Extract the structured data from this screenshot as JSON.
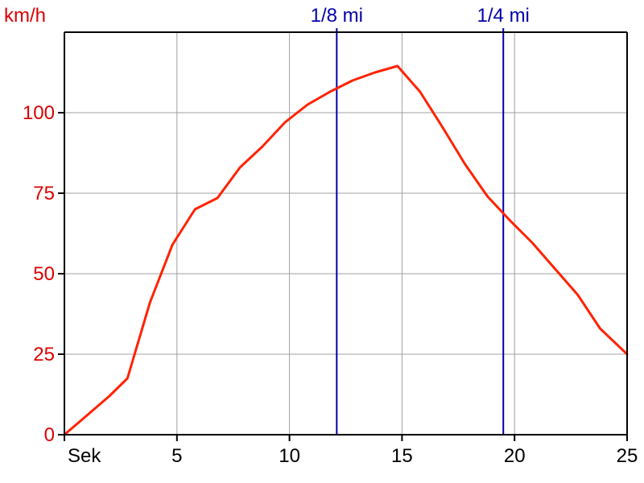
{
  "chart_data": {
    "type": "line",
    "ylabel": "km/h",
    "xlabel": "Sek",
    "xlim": [
      0,
      25
    ],
    "ylim": [
      0,
      125
    ],
    "x_ticks": [
      {
        "value": 0,
        "label": "Sek"
      },
      {
        "value": 5,
        "label": "5"
      },
      {
        "value": 10,
        "label": "10"
      },
      {
        "value": 15,
        "label": "15"
      },
      {
        "value": 20,
        "label": "20"
      },
      {
        "value": 25,
        "label": "25"
      }
    ],
    "y_ticks": [
      {
        "value": 0,
        "label": "0"
      },
      {
        "value": 25,
        "label": "25"
      },
      {
        "value": 50,
        "label": "50"
      },
      {
        "value": 75,
        "label": "75"
      },
      {
        "value": 100,
        "label": "100"
      }
    ],
    "grid": true,
    "series": [
      {
        "color": "#ff2200",
        "points": [
          [
            0,
            0
          ],
          [
            1,
            6
          ],
          [
            2,
            12
          ],
          [
            2.8,
            17.5
          ],
          [
            3.8,
            41
          ],
          [
            4.8,
            59
          ],
          [
            5.8,
            70
          ],
          [
            6.8,
            73.5
          ],
          [
            7.8,
            83
          ],
          [
            8.8,
            89.5
          ],
          [
            9.8,
            97
          ],
          [
            10.8,
            102.5
          ],
          [
            11.8,
            106.5
          ],
          [
            12.8,
            110
          ],
          [
            13.8,
            112.5
          ],
          [
            14.8,
            114.5
          ],
          [
            15.8,
            106.5
          ],
          [
            16.8,
            95.5
          ],
          [
            17.8,
            84
          ],
          [
            18.8,
            74
          ],
          [
            19.8,
            66.5
          ],
          [
            20.8,
            59.5
          ],
          [
            21.8,
            51.5
          ],
          [
            22.8,
            43.5
          ],
          [
            23.8,
            33
          ],
          [
            25,
            25
          ]
        ]
      }
    ],
    "markers": [
      {
        "x": 12.1,
        "label": "1/8 mi",
        "color": "#0000aa"
      },
      {
        "x": 19.5,
        "label": "1/4 mi",
        "color": "#0000aa"
      }
    ],
    "colors": {
      "y_axis_text": "#dd0000",
      "grid": "#a0a0a0",
      "axis": "#000000"
    }
  }
}
